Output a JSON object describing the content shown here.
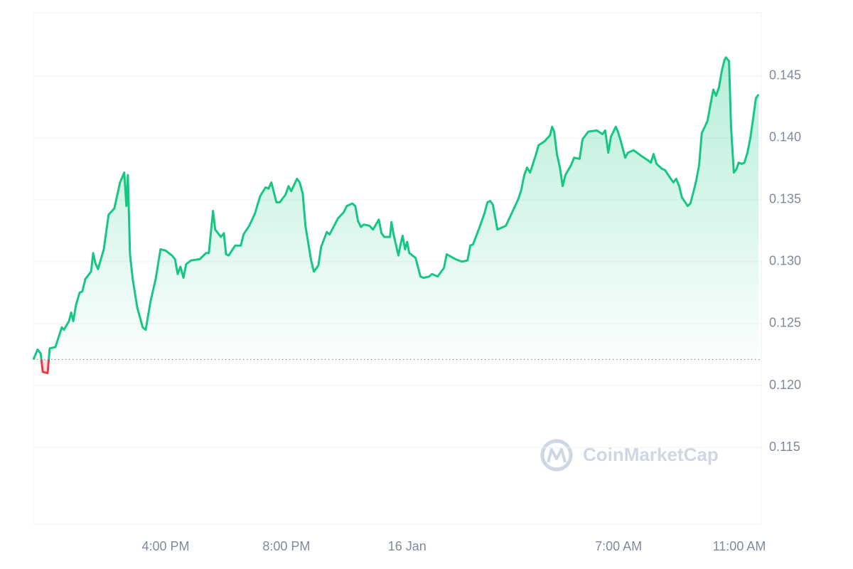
{
  "chart_data": {
    "type": "line",
    "x": [
      11.62,
      11.76,
      11.86,
      11.93,
      12.09,
      12.16,
      12.35,
      12.56,
      12.63,
      12.8,
      12.87,
      12.94,
      13.03,
      13.15,
      13.24,
      13.34,
      13.53,
      13.6,
      13.67,
      13.76,
      13.95,
      14.11,
      14.3,
      14.49,
      14.63,
      14.7,
      14.75,
      14.82,
      14.91,
      15.06,
      15.24,
      15.34,
      15.5,
      15.67,
      15.83,
      16.0,
      16.21,
      16.31,
      16.4,
      16.49,
      16.59,
      16.68,
      16.84,
      17.13,
      17.34,
      17.43,
      17.57,
      17.64,
      17.83,
      17.93,
      18.0,
      18.09,
      18.3,
      18.49,
      18.58,
      18.77,
      18.96,
      19.13,
      19.31,
      19.41,
      19.5,
      19.67,
      19.78,
      19.97,
      20.07,
      20.16,
      20.35,
      20.44,
      20.54,
      20.63,
      20.82,
      20.91,
      21.06,
      21.15,
      21.34,
      21.43,
      21.71,
      21.9,
      22.0,
      22.18,
      22.28,
      22.37,
      22.47,
      22.56,
      22.75,
      22.87,
      23.06,
      23.15,
      23.24,
      23.43,
      23.48,
      23.55,
      23.71,
      23.78,
      23.85,
      23.93,
      24.0,
      24.07,
      24.28,
      24.44,
      24.54,
      24.73,
      24.82,
      25.01,
      25.22,
      25.31,
      25.6,
      25.81,
      26.0,
      26.09,
      26.18,
      26.37,
      26.56,
      26.66,
      26.75,
      26.84,
      26.99,
      27.27,
      27.46,
      27.69,
      27.78,
      27.88,
      27.97,
      28.07,
      28.26,
      28.35,
      28.54,
      28.73,
      28.8,
      28.87,
      28.96,
      29.06,
      29.15,
      29.24,
      29.43,
      29.53,
      29.71,
      29.81,
      30.0,
      30.28,
      30.47,
      30.56,
      30.66,
      30.75,
      30.91,
      30.98,
      31.08,
      31.22,
      31.31,
      31.5,
      31.78,
      31.97,
      32.07,
      32.16,
      32.26,
      32.44,
      32.54,
      32.73,
      32.82,
      32.91,
      33.01,
      33.1,
      33.29,
      33.38,
      33.48,
      33.57,
      33.67,
      33.76,
      33.86,
      33.95,
      34.04,
      34.14,
      34.23,
      34.33,
      34.42,
      34.51,
      34.56,
      34.66,
      34.73,
      34.82,
      34.91,
      34.98,
      35.08,
      35.17,
      35.27,
      35.36,
      35.45,
      35.55,
      35.64
    ],
    "values": [
      0.1221,
      0.1229,
      0.1226,
      0.1211,
      0.121,
      0.123,
      0.1231,
      0.1247,
      0.1245,
      0.1252,
      0.1259,
      0.1252,
      0.1265,
      0.1275,
      0.1276,
      0.1286,
      0.1292,
      0.1307,
      0.1299,
      0.1294,
      0.131,
      0.1338,
      0.1343,
      0.1364,
      0.1372,
      0.1345,
      0.137,
      0.1306,
      0.1286,
      0.1263,
      0.1247,
      0.1245,
      0.1268,
      0.1286,
      0.131,
      0.1309,
      0.1305,
      0.1302,
      0.129,
      0.1296,
      0.1287,
      0.1298,
      0.1301,
      0.1302,
      0.1307,
      0.1307,
      0.1341,
      0.1326,
      0.132,
      0.1323,
      0.1306,
      0.1305,
      0.1313,
      0.1313,
      0.1322,
      0.1329,
      0.1339,
      0.1353,
      0.136,
      0.1359,
      0.1364,
      0.1348,
      0.1348,
      0.1354,
      0.1361,
      0.1357,
      0.1367,
      0.1364,
      0.1355,
      0.1329,
      0.1301,
      0.1292,
      0.1297,
      0.1312,
      0.1324,
      0.1322,
      0.1335,
      0.134,
      0.1345,
      0.1347,
      0.1345,
      0.1333,
      0.1328,
      0.133,
      0.1329,
      0.1326,
      0.1334,
      0.1323,
      0.132,
      0.132,
      0.1332,
      0.1322,
      0.1305,
      0.1314,
      0.1321,
      0.131,
      0.1316,
      0.1307,
      0.1303,
      0.1288,
      0.1287,
      0.1288,
      0.129,
      0.1288,
      0.1295,
      0.1306,
      0.1302,
      0.13,
      0.1301,
      0.1313,
      0.1314,
      0.1326,
      0.1339,
      0.1348,
      0.1349,
      0.1346,
      0.1326,
      0.1329,
      0.1339,
      0.1351,
      0.1358,
      0.137,
      0.1376,
      0.1372,
      0.1386,
      0.1394,
      0.1397,
      0.1402,
      0.1409,
      0.1405,
      0.1387,
      0.1376,
      0.1361,
      0.137,
      0.1378,
      0.1384,
      0.1383,
      0.1399,
      0.1405,
      0.1406,
      0.1403,
      0.1406,
      0.1388,
      0.1401,
      0.1409,
      0.1405,
      0.1397,
      0.1384,
      0.1388,
      0.139,
      0.1385,
      0.1382,
      0.138,
      0.1387,
      0.1379,
      0.1375,
      0.1374,
      0.1367,
      0.1364,
      0.1367,
      0.1361,
      0.1352,
      0.1345,
      0.1347,
      0.1356,
      0.1365,
      0.1378,
      0.1404,
      0.1409,
      0.1414,
      0.1426,
      0.1439,
      0.1434,
      0.1441,
      0.1454,
      0.1463,
      0.1465,
      0.1462,
      0.1408,
      0.1372,
      0.1375,
      0.138,
      0.1379,
      0.138,
      0.1388,
      0.1399,
      0.1414,
      0.1432,
      0.1435
    ],
    "color": "#16c784",
    "down_color": "#ea3943",
    "xlim": [
      11.62,
      35.73
    ],
    "ylim": [
      0.1088,
      0.1501
    ],
    "xticks": [
      {
        "value": 16,
        "label": "4:00 PM"
      },
      {
        "value": 20,
        "label": "8:00 PM"
      },
      {
        "value": 24,
        "label": "16 Jan"
      },
      {
        "value": 31,
        "label": "7:00 AM"
      },
      {
        "value": 35,
        "label": "11:00 AM"
      }
    ],
    "yticks": [
      0.115,
      {
        "value": 0.12,
        "label": "0.120"
      },
      0.125,
      {
        "value": 0.13,
        "label": "0.130"
      },
      0.135,
      {
        "value": 0.14,
        "label": "0.140"
      },
      0.145
    ],
    "grid": true,
    "watermark": "CoinMarketCap"
  }
}
